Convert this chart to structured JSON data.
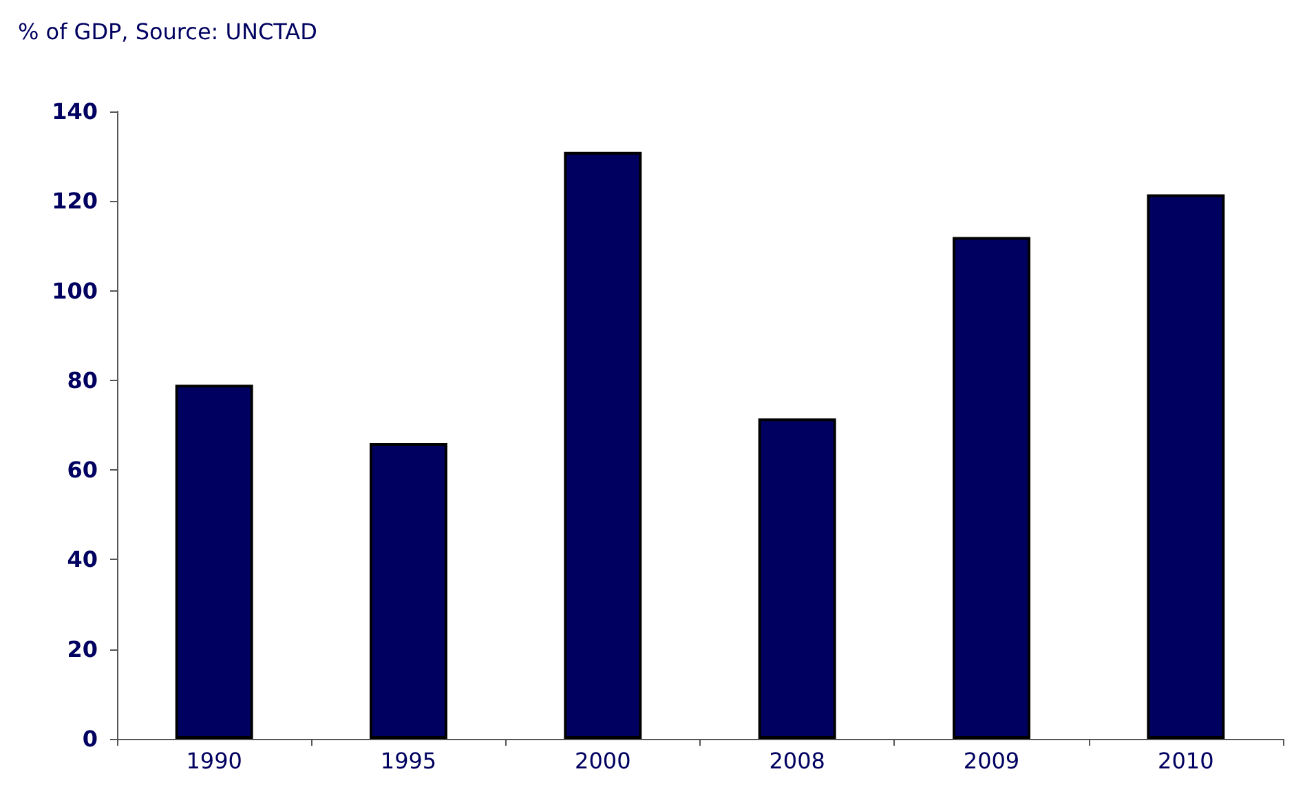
{
  "chart_data": {
    "type": "bar",
    "title": "% of GDP, Source: UNCTAD",
    "categories": [
      "1990",
      "1995",
      "2000",
      "2008",
      "2009",
      "2010"
    ],
    "values": [
      79,
      66,
      131,
      71.5,
      112,
      121.5
    ],
    "color": "#000060",
    "ylim": [
      0,
      140
    ],
    "yticks": [
      0,
      20,
      40,
      60,
      80,
      100,
      120,
      140
    ],
    "grid": false
  }
}
